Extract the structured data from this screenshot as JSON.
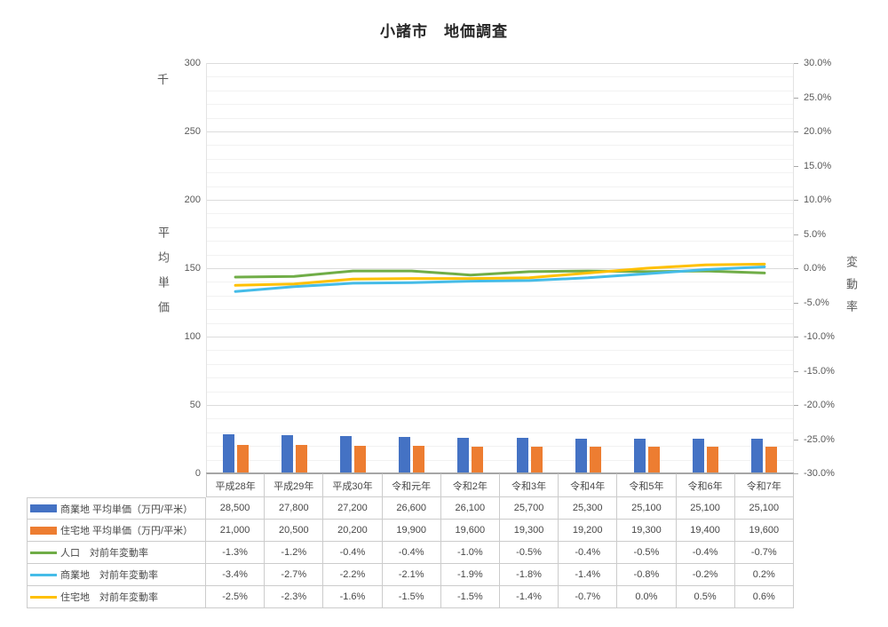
{
  "title": "小諸市　地価調査",
  "chart_data": {
    "type": "combo",
    "categories": [
      "平成28年",
      "平成29年",
      "平成30年",
      "令和元年",
      "令和2年",
      "令和3年",
      "令和4年",
      "令和5年",
      "令和6年",
      "令和7年"
    ],
    "left_axis": {
      "unit": "千",
      "title": "平均単価",
      "min": 0,
      "max": 300,
      "major_step": 50,
      "minor_step": 10,
      "tick_labels": [
        "300",
        "250",
        "200",
        "150",
        "100",
        "50",
        "0"
      ]
    },
    "right_axis": {
      "title": "変動率",
      "min": -30,
      "max": 30,
      "major_step": 5,
      "tick_labels": [
        "30.0%",
        "25.0%",
        "20.0%",
        "15.0%",
        "10.0%",
        "5.0%",
        "0.0%",
        "-5.0%",
        "-10.0%",
        "-15.0%",
        "-20.0%",
        "-25.0%",
        "-30.0%"
      ]
    },
    "bar_series": [
      {
        "name": "商業地 平均単価（万円/平米）",
        "color": "#4472C4",
        "axis": "left",
        "values": [
          28.5,
          27.8,
          27.2,
          26.6,
          26.1,
          25.7,
          25.3,
          25.1,
          25.1,
          25.1
        ],
        "table_labels": [
          "28,500",
          "27,800",
          "27,200",
          "26,600",
          "26,100",
          "25,700",
          "25,300",
          "25,100",
          "25,100",
          "25,100"
        ]
      },
      {
        "name": "住宅地 平均単価（万円/平米）",
        "color": "#ED7D31",
        "axis": "left",
        "values": [
          21.0,
          20.5,
          20.2,
          19.9,
          19.6,
          19.3,
          19.2,
          19.3,
          19.4,
          19.6
        ],
        "table_labels": [
          "21,000",
          "20,500",
          "20,200",
          "19,900",
          "19,600",
          "19,300",
          "19,200",
          "19,300",
          "19,400",
          "19,600"
        ]
      }
    ],
    "line_series": [
      {
        "name": "人口　対前年変動率",
        "color": "#70AD47",
        "axis": "right",
        "values": [
          -1.3,
          -1.2,
          -0.4,
          -0.4,
          -1.0,
          -0.5,
          -0.4,
          -0.5,
          -0.4,
          -0.7
        ],
        "table_labels": [
          "-1.3%",
          "-1.2%",
          "-0.4%",
          "-0.4%",
          "-1.0%",
          "-0.5%",
          "-0.4%",
          "-0.5%",
          "-0.4%",
          "-0.7%"
        ]
      },
      {
        "name": "商業地　対前年変動率",
        "color": "#45BCE8",
        "axis": "right",
        "values": [
          -3.4,
          -2.7,
          -2.2,
          -2.1,
          -1.9,
          -1.8,
          -1.4,
          -0.8,
          -0.2,
          0.2
        ],
        "table_labels": [
          "-3.4%",
          "-2.7%",
          "-2.2%",
          "-2.1%",
          "-1.9%",
          "-1.8%",
          "-1.4%",
          "-0.8%",
          "-0.2%",
          "0.2%"
        ]
      },
      {
        "name": "住宅地　対前年変動率",
        "color": "#FFC000",
        "axis": "right",
        "values": [
          -2.5,
          -2.3,
          -1.6,
          -1.5,
          -1.5,
          -1.4,
          -0.7,
          0.0,
          0.5,
          0.6
        ],
        "table_labels": [
          "-2.5%",
          "-2.3%",
          "-1.6%",
          "-1.5%",
          "-1.5%",
          "-1.4%",
          "-0.7%",
          "0.0%",
          "0.5%",
          "0.6%"
        ]
      }
    ]
  }
}
